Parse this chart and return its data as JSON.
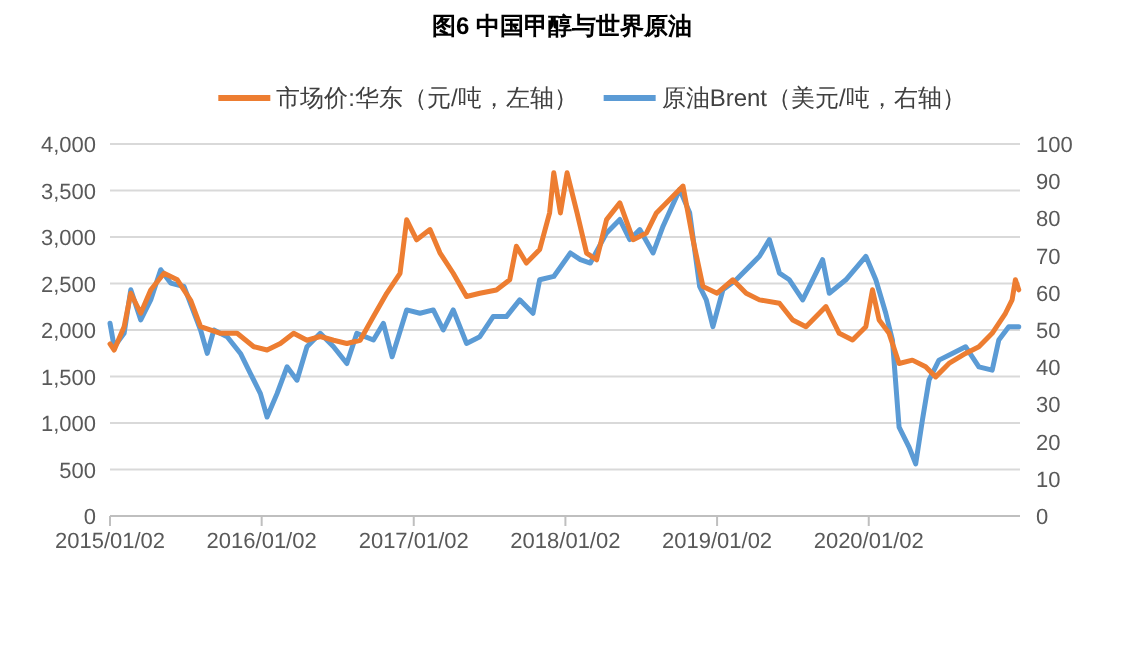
{
  "chart_data": {
    "type": "line",
    "title": "图6 中国甲醇与世界原油",
    "x": [
      "2015-01-02",
      "2015-01-12",
      "2015-02-05",
      "2015-02-21",
      "2015-03-17",
      "2015-04-10",
      "2015-05-12",
      "2015-06-13",
      "2015-07-15",
      "2015-08-08",
      "2015-09-25",
      "2015-11-04",
      "2015-12-14",
      "2016-01-15",
      "2016-02-16",
      "2016-03-19",
      "2016-04-20",
      "2016-05-22",
      "2016-06-23",
      "2016-07-25",
      "2016-08-26",
      "2016-09-27",
      "2016-10-29",
      "2016-11-30",
      "2016-12-16",
      "2017-01-09",
      "2017-02-10",
      "2017-03-06",
      "2017-04-07",
      "2017-05-09",
      "2017-06-10",
      "2017-07-20",
      "2017-08-21",
      "2017-09-06",
      "2017-09-30",
      "2017-11-01",
      "2017-11-25",
      "2017-12-05",
      "2017-12-21",
      "2018-01-06",
      "2018-01-30",
      "2018-02-22",
      "2018-03-18",
      "2018-04-11",
      "2018-05-13",
      "2018-06-14",
      "2018-07-16",
      "2018-08-09",
      "2018-09-10",
      "2018-10-12",
      "2018-11-05",
      "2018-11-29",
      "2019-01-02",
      "2019-02-09",
      "2019-03-13",
      "2019-04-14",
      "2019-06-01",
      "2019-07-03",
      "2019-08-04",
      "2019-09-21",
      "2019-10-23",
      "2019-11-24",
      "2019-12-26",
      "2020-01-11",
      "2020-01-27",
      "2020-02-20",
      "2020-03-15",
      "2020-04-16",
      "2020-05-18",
      "2020-06-11",
      "2020-07-13",
      "2020-08-22",
      "2020-09-23",
      "2020-10-25",
      "2020-11-26",
      "2020-12-12",
      "2020-12-20",
      "2020-12-28"
    ],
    "series": [
      {
        "name": "市场价:华东（元/吨，左轴）",
        "color": "#ed7d31",
        "values": [
          1850,
          1785,
          2035,
          2395,
          2180,
          2430,
          2610,
          2540,
          2320,
          2035,
          1965,
          1965,
          1820,
          1785,
          1855,
          1965,
          1890,
          1930,
          1890,
          1855,
          1890,
          2145,
          2395,
          2610,
          3185,
          2970,
          3080,
          2830,
          2610,
          2360,
          2395,
          2430,
          2540,
          2900,
          2720,
          2865,
          3260,
          3690,
          3259,
          3690,
          3259,
          2827,
          2755,
          3187,
          3367,
          2971,
          3043,
          3259,
          3403,
          3547,
          2971,
          2468,
          2396,
          2540,
          2396,
          2324,
          2288,
          2108,
          2036,
          2252,
          1964,
          1892,
          2036,
          2432,
          2108,
          1964,
          1640,
          1676,
          1604,
          1496,
          1640,
          1748,
          1820,
          1964,
          2180,
          2324,
          2540,
          2432
        ]
      },
      {
        "name": "原油Brent（美元/吨，右轴）",
        "color": "#5b9bd5",
        "axis": "y2",
        "x": [
          "2015-01-02",
          "2015-01-12",
          "2015-02-05",
          "2015-02-21",
          "2015-03-17",
          "2015-04-10",
          "2015-05-04",
          "2015-05-28",
          "2015-06-29",
          "2015-08-08",
          "2015-08-24",
          "2015-09-09",
          "2015-10-11",
          "2015-11-12",
          "2015-12-06",
          "2015-12-30",
          "2016-01-15",
          "2016-02-08",
          "2016-03-03",
          "2016-03-27",
          "2016-04-20",
          "2016-05-22",
          "2016-06-23",
          "2016-07-25",
          "2016-08-18",
          "2016-09-27",
          "2016-10-21",
          "2016-11-11",
          "2016-12-16",
          "2017-01-17",
          "2017-02-18",
          "2017-03-14",
          "2017-04-07",
          "2017-05-09",
          "2017-06-10",
          "2017-07-12",
          "2017-08-13",
          "2017-09-14",
          "2017-10-16",
          "2017-11-01",
          "2017-12-05",
          "2018-01-14",
          "2018-02-07",
          "2018-03-03",
          "2018-04-11",
          "2018-05-13",
          "2018-06-06",
          "2018-06-30",
          "2018-08-01",
          "2018-08-25",
          "2018-10-04",
          "2018-10-28",
          "2018-11-21",
          "2018-12-07",
          "2018-12-23",
          "2019-01-16",
          "2019-02-17",
          "2019-03-21",
          "2019-04-14",
          "2019-05-08",
          "2019-06-01",
          "2019-06-25",
          "2019-07-27",
          "2019-08-20",
          "2019-09-13",
          "2019-09-29",
          "2019-11-08",
          "2019-12-26",
          "2020-01-19",
          "2020-02-12",
          "2020-02-28",
          "2020-03-15",
          "2020-04-08",
          "2020-04-24",
          "2020-05-10",
          "2020-05-26",
          "2020-06-19",
          "2020-07-21",
          "2020-08-22",
          "2020-09-23",
          "2020-10-25",
          "2020-11-10",
          "2020-12-04",
          "2020-12-28"
        ],
        "values": [
          51.8,
          45.5,
          49.1,
          60.8,
          52.7,
          58.1,
          66.2,
          62.6,
          61.7,
          50.0,
          43.7,
          50.0,
          48.2,
          43.7,
          38.3,
          32.9,
          26.6,
          32.9,
          40.1,
          36.5,
          45.5,
          49.1,
          45.5,
          41.0,
          49.1,
          47.3,
          51.8,
          42.8,
          55.4,
          54.5,
          55.4,
          50.0,
          55.4,
          46.4,
          48.2,
          53.6,
          53.6,
          58.1,
          54.5,
          63.5,
          64.4,
          70.7,
          68.9,
          68.0,
          76.1,
          79.7,
          74.3,
          77.0,
          70.7,
          77.9,
          87.8,
          81.5,
          61.7,
          58.1,
          50.9,
          60.8,
          63.5,
          67.1,
          69.8,
          74.3,
          65.3,
          63.5,
          58.1,
          63.5,
          68.9,
          59.9,
          63.5,
          69.8,
          63.5,
          54.5,
          47.3,
          23.9,
          18.5,
          14.0,
          25.7,
          36.5,
          41.9,
          43.7,
          45.5,
          40.1,
          39.2,
          47.3,
          50.9,
          50.9
        ]
      }
    ],
    "xlim": [
      "2015-01-02",
      "2020-12-31"
    ],
    "xticks": [
      {
        "value": "2015-01-02",
        "label": "2015/01/02"
      },
      {
        "value": "2016-01-02",
        "label": "2016/01/02"
      },
      {
        "value": "2017-01-02",
        "label": "2017/01/02"
      },
      {
        "value": "2018-01-02",
        "label": "2018/01/02"
      },
      {
        "value": "2019-01-02",
        "label": "2019/01/02"
      },
      {
        "value": "2020-01-02",
        "label": "2020/01/02"
      }
    ],
    "ylim": [
      0,
      4000
    ],
    "yticks": [
      {
        "value": 0,
        "label": "0"
      },
      {
        "value": 500,
        "label": "500"
      },
      {
        "value": 1000,
        "label": "1,000"
      },
      {
        "value": 1500,
        "label": "1,500"
      },
      {
        "value": 2000,
        "label": "2,000"
      },
      {
        "value": 2500,
        "label": "2,500"
      },
      {
        "value": 3000,
        "label": "3,000"
      },
      {
        "value": 3500,
        "label": "3,500"
      },
      {
        "value": 4000,
        "label": "4,000"
      }
    ],
    "y2lim": [
      0,
      100
    ],
    "y2ticks": [
      0,
      10,
      20,
      30,
      40,
      50,
      60,
      70,
      80,
      90,
      100
    ],
    "grid": "y",
    "legend": "top",
    "line_style": "solid",
    "marker": "none"
  }
}
